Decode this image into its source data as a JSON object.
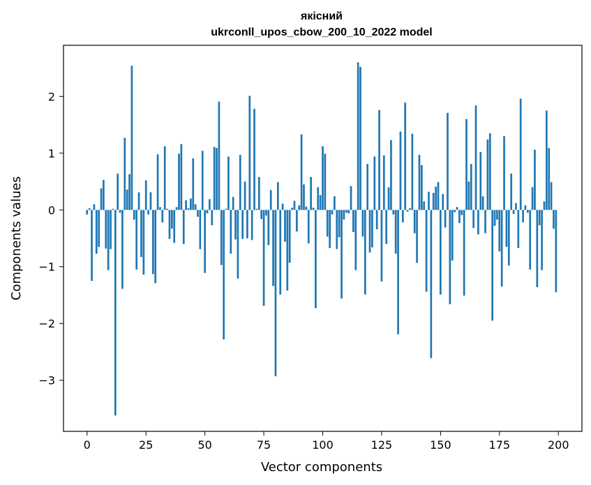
{
  "chart_data": {
    "type": "bar",
    "title": "якісний",
    "subtitle": "ukrconll_upos_cbow_200_10_2022 model",
    "xlabel": "Vector components",
    "ylabel": "Components values",
    "xlim": [
      -10,
      210
    ],
    "ylim": [
      -3.9,
      2.9
    ],
    "xticks": [
      0,
      25,
      50,
      75,
      100,
      125,
      150,
      175,
      200
    ],
    "yticks": [
      -3,
      -2,
      -1,
      0,
      1,
      2
    ],
    "ytick_labels": [
      "−3",
      "−2",
      "−1",
      "0",
      "1",
      "2"
    ],
    "bar_color": "#1f77b4",
    "grid": false,
    "values": [
      -0.08,
      0.03,
      -1.25,
      0.1,
      -0.77,
      -0.65,
      0.38,
      0.53,
      -0.68,
      -1.06,
      -0.69,
      0.02,
      -3.62,
      0.64,
      -0.05,
      -1.39,
      1.27,
      0.36,
      0.63,
      2.54,
      -0.17,
      -1.05,
      0.31,
      -0.83,
      -1.14,
      0.52,
      -0.08,
      0.31,
      -1.13,
      -1.29,
      0.98,
      0.05,
      -0.22,
      1.12,
      0.02,
      -0.51,
      -0.33,
      -0.58,
      0.05,
      0.99,
      1.16,
      -0.6,
      0.17,
      0.03,
      0.2,
      0.91,
      0.1,
      -0.12,
      -0.69,
      1.04,
      -1.11,
      -0.06,
      0.19,
      -0.27,
      1.11,
      1.09,
      1.91,
      -0.97,
      -2.28,
      0.02,
      0.94,
      -0.77,
      0.23,
      -0.52,
      -1.21,
      0.97,
      -0.51,
      0.5,
      -0.5,
      2.01,
      -0.53,
      1.78,
      0.02,
      0.58,
      -0.16,
      -1.69,
      -0.1,
      -0.62,
      0.35,
      -1.34,
      -2.93,
      0.49,
      -1.49,
      0.11,
      -0.56,
      -1.42,
      -0.93,
      0.04,
      0.16,
      -0.38,
      0.08,
      1.33,
      0.45,
      0.06,
      -0.59,
      0.58,
      0.04,
      -1.73,
      0.4,
      0.26,
      1.12,
      0.99,
      -0.47,
      -0.67,
      -0.08,
      0.24,
      -0.69,
      -0.48,
      -1.56,
      -0.17,
      -0.05,
      -0.06,
      0.42,
      -0.39,
      -1.06,
      2.6,
      2.52,
      -0.47,
      -1.49,
      0.81,
      -0.75,
      -0.66,
      0.94,
      -0.34,
      1.76,
      -1.26,
      0.96,
      -0.6,
      0.4,
      1.23,
      -0.08,
      -0.77,
      -2.19,
      1.38,
      -0.22,
      1.89,
      -0.03,
      0.03,
      1.34,
      -0.41,
      -0.93,
      0.97,
      0.79,
      0.15,
      -1.44,
      0.32,
      -2.61,
      0.3,
      0.41,
      0.49,
      -1.49,
      0.28,
      -0.31,
      1.71,
      -1.66,
      -0.89,
      -0.04,
      0.05,
      -0.23,
      -0.09,
      -1.51,
      1.6,
      0.5,
      0.81,
      -0.32,
      1.84,
      -0.43,
      1.02,
      0.24,
      -0.41,
      1.24,
      1.35,
      -1.95,
      -0.28,
      -0.17,
      -0.73,
      -1.35,
      1.3,
      -0.65,
      -0.98,
      0.64,
      -0.07,
      0.12,
      -0.67,
      1.96,
      -0.22,
      0.08,
      -0.05,
      -1.05,
      0.4,
      1.06,
      -1.36,
      -0.27,
      -1.06,
      0.15,
      1.75,
      1.09,
      0.49,
      -0.33,
      -1.45
    ]
  }
}
